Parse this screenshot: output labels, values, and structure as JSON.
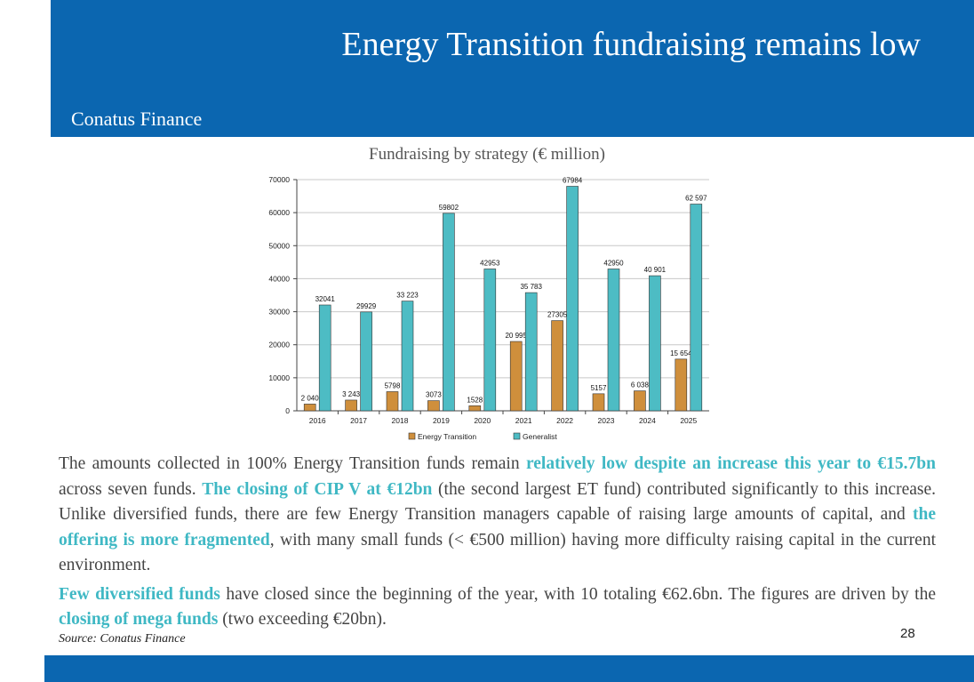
{
  "header": {
    "title": "Energy Transition fundraising remains low",
    "subtitle": "Conatus Finance"
  },
  "chart_title": "Fundraising by strategy (€ million)",
  "chart_data": {
    "type": "bar",
    "title": "Fundraising by strategy (€ million)",
    "categories": [
      "2016",
      "2017",
      "2018",
      "2019",
      "2020",
      "2021",
      "2022",
      "2023",
      "2024",
      "2025"
    ],
    "series": [
      {
        "name": "Energy Transition",
        "values": [
          2040,
          3243,
          5798,
          3073,
          1528,
          20995,
          27305,
          5157,
          6038,
          15654
        ],
        "labels": [
          "2 040",
          "3 243",
          "5798",
          "3073",
          "1528",
          "20 995",
          "27305",
          "5157",
          "6 038",
          "15 654"
        ],
        "color": "#cf8f3c"
      },
      {
        "name": "Generalist",
        "values": [
          32041,
          29929,
          33223,
          59802,
          42953,
          35783,
          67984,
          42950,
          40901,
          62597
        ],
        "labels": [
          "32041",
          "29929",
          "33 223",
          "59802",
          "42953",
          "35 783",
          "67984",
          "42950",
          "40 901",
          "62 597"
        ],
        "color": "#4dbcc4"
      }
    ],
    "yticks": [
      "0",
      "10000",
      "20000",
      "30000",
      "40000",
      "50000",
      "60000",
      "70000"
    ],
    "ylim": [
      0,
      70000
    ],
    "grid": true,
    "legend": "bottom"
  },
  "body": {
    "p1": [
      {
        "t": "The amounts collected in 100% Energy Transition funds remain ",
        "h": false
      },
      {
        "t": "relatively low despite an increase this year to €15.7bn",
        "h": true
      },
      {
        "t": " across seven funds. ",
        "h": false
      },
      {
        "t": "The closing of CIP V at €12bn",
        "h": true
      },
      {
        "t": " (the second largest ET fund) contributed significantly to this increase. Unlike diversified funds, there are few Energy Transition managers capable of raising large amounts of capital, and ",
        "h": false
      },
      {
        "t": "the offering is more fragmented",
        "h": true
      },
      {
        "t": ", with many small funds (< €500 million) having more difficulty raising capital in the current environment.",
        "h": false
      }
    ],
    "p2": [
      {
        "t": "Few diversified funds",
        "h": true
      },
      {
        "t": " have closed since the beginning of the year, with 10 totaling €62.6bn. The figures are driven by the ",
        "h": false
      },
      {
        "t": "closing of  mega funds",
        "h": true
      },
      {
        "t": " (two exceeding €20bn).",
        "h": false
      }
    ]
  },
  "source": "Source: Conatus Finance",
  "page_number": "28"
}
